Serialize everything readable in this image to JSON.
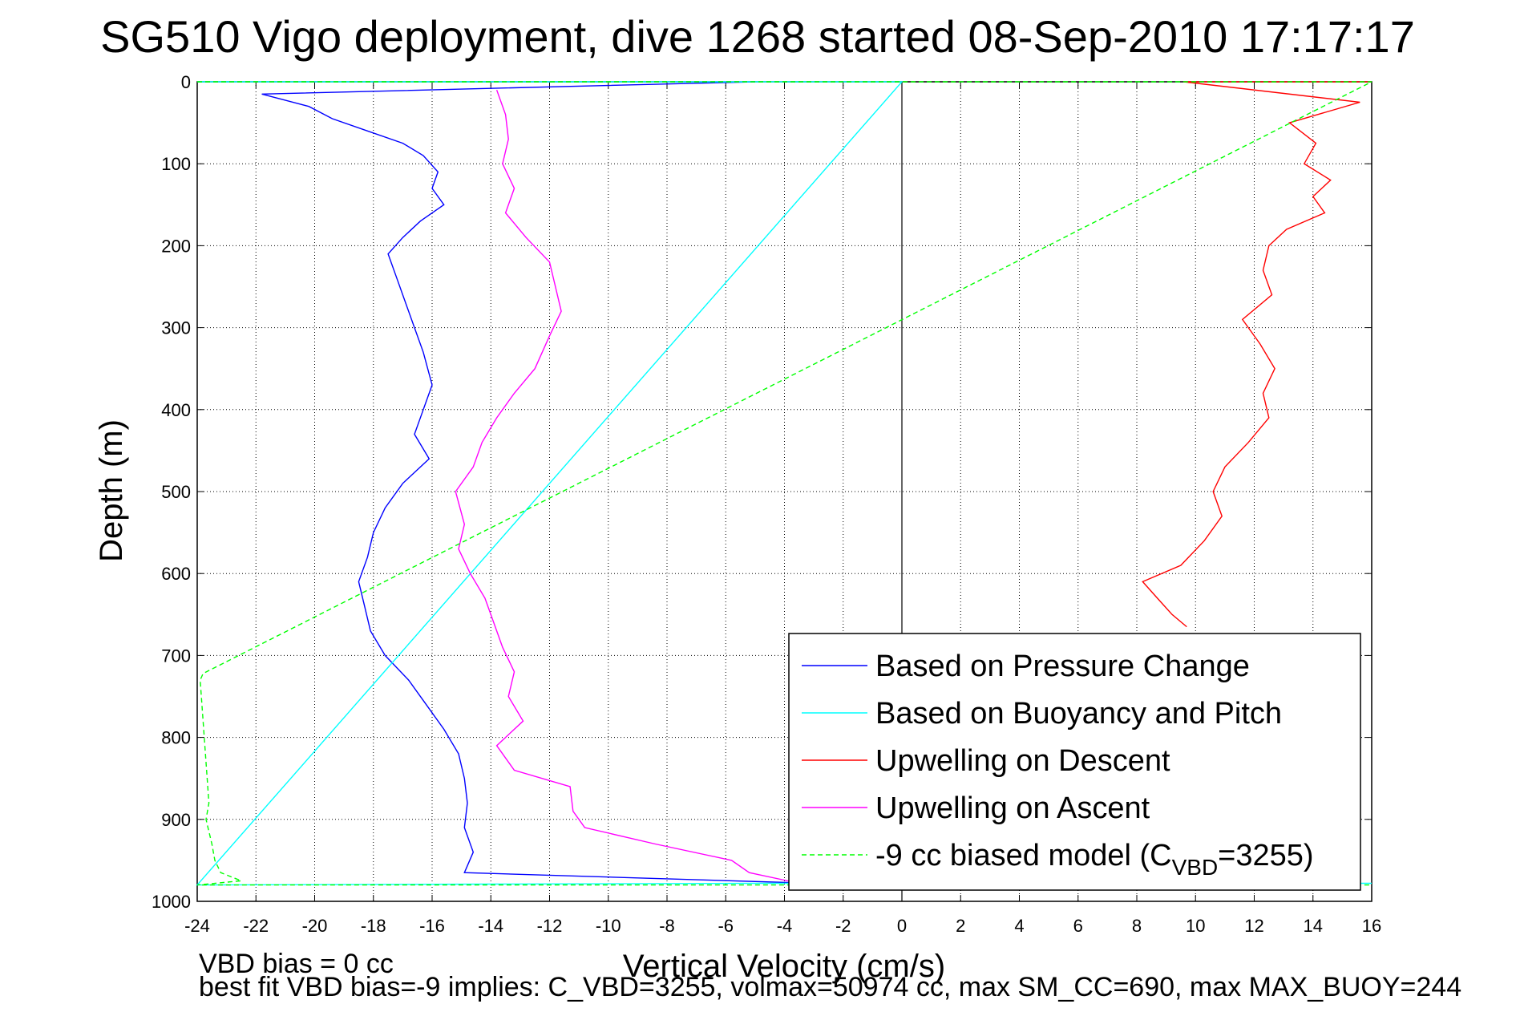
{
  "chart_data": {
    "type": "line",
    "title": "SG510 Vigo deployment, dive 1268 started 08-Sep-2010 17:17:17",
    "xlabel": "Vertical Velocity (cm/s)",
    "ylabel": "Depth (m)",
    "xlim": [
      -24,
      16
    ],
    "ylim": [
      1000,
      0
    ],
    "y_reversed": true,
    "grid": true,
    "x_ticks": [
      "-24",
      "-22",
      "-20",
      "-18",
      "-16",
      "-14",
      "-12",
      "-10",
      "-8",
      "-6",
      "-4",
      "-2",
      "0",
      "2",
      "4",
      "6",
      "8",
      "10",
      "12",
      "14",
      "16"
    ],
    "y_ticks": [
      "0",
      "100",
      "200",
      "300",
      "400",
      "500",
      "600",
      "700",
      "800",
      "900",
      "1000"
    ],
    "legend_position": "bottom-right",
    "series": [
      {
        "name": "Based on Pressure Change",
        "color": "#0000ff",
        "style": "solid",
        "points": [
          [
            -5,
            0
          ],
          [
            -21.8,
            15
          ],
          [
            -20.2,
            30
          ],
          [
            -19.4,
            45
          ],
          [
            -18.2,
            60
          ],
          [
            -17,
            75
          ],
          [
            -16.3,
            90
          ],
          [
            -15.8,
            110
          ],
          [
            -16,
            130
          ],
          [
            -15.6,
            150
          ],
          [
            -16.4,
            170
          ],
          [
            -17,
            190
          ],
          [
            -17.5,
            210
          ],
          [
            -17.2,
            240
          ],
          [
            -16.9,
            270
          ],
          [
            -16.6,
            300
          ],
          [
            -16.3,
            330
          ],
          [
            -16,
            370
          ],
          [
            -16.3,
            400
          ],
          [
            -16.6,
            430
          ],
          [
            -16.1,
            460
          ],
          [
            -17,
            490
          ],
          [
            -17.6,
            520
          ],
          [
            -18,
            550
          ],
          [
            -18.2,
            580
          ],
          [
            -18.5,
            610
          ],
          [
            -18.3,
            640
          ],
          [
            -18.1,
            670
          ],
          [
            -17.6,
            700
          ],
          [
            -16.8,
            730
          ],
          [
            -16.2,
            760
          ],
          [
            -15.6,
            790
          ],
          [
            -15.1,
            820
          ],
          [
            -14.9,
            850
          ],
          [
            -14.8,
            880
          ],
          [
            -14.9,
            910
          ],
          [
            -14.6,
            940
          ],
          [
            -14.9,
            965
          ],
          [
            -3,
            978
          ],
          [
            -2,
            982
          ]
        ]
      },
      {
        "name": "Based on Buoyancy and Pitch",
        "color": "#00ffff",
        "style": "solid",
        "points": [
          [
            -24,
            0
          ],
          [
            -14,
            0
          ],
          [
            -5,
            0
          ],
          [
            0,
            0
          ],
          [
            -24,
            980
          ],
          [
            -14,
            979
          ],
          [
            -5,
            978
          ],
          [
            0,
            978
          ],
          [
            16,
            978
          ]
        ]
      },
      {
        "name": "Upwelling on Descent",
        "color": "#ff0000",
        "style": "solid",
        "points": [
          [
            16,
            0
          ],
          [
            9.6,
            0
          ],
          [
            15.6,
            25
          ],
          [
            13.2,
            50
          ],
          [
            14.1,
            75
          ],
          [
            13.7,
            100
          ],
          [
            14.6,
            120
          ],
          [
            14,
            140
          ],
          [
            14.4,
            160
          ],
          [
            13.1,
            180
          ],
          [
            12.5,
            200
          ],
          [
            12.3,
            230
          ],
          [
            12.6,
            260
          ],
          [
            11.6,
            290
          ],
          [
            12.2,
            320
          ],
          [
            12.7,
            350
          ],
          [
            12.3,
            380
          ],
          [
            12.5,
            410
          ],
          [
            11.8,
            440
          ],
          [
            11,
            470
          ],
          [
            10.6,
            500
          ],
          [
            10.9,
            530
          ],
          [
            10.3,
            560
          ],
          [
            9.5,
            590
          ],
          [
            8.2,
            610
          ],
          [
            8.7,
            630
          ],
          [
            9.2,
            650
          ],
          [
            9.7,
            665
          ]
        ]
      },
      {
        "name": "Upwelling on Ascent",
        "color": "#ff00ff",
        "style": "solid",
        "points": [
          [
            -13.8,
            10
          ],
          [
            -13.5,
            40
          ],
          [
            -13.4,
            70
          ],
          [
            -13.6,
            100
          ],
          [
            -13.2,
            130
          ],
          [
            -13.5,
            160
          ],
          [
            -12.8,
            190
          ],
          [
            -12,
            220
          ],
          [
            -11.8,
            250
          ],
          [
            -11.6,
            280
          ],
          [
            -12,
            310
          ],
          [
            -12.5,
            350
          ],
          [
            -13.2,
            380
          ],
          [
            -13.8,
            410
          ],
          [
            -14.3,
            440
          ],
          [
            -14.6,
            470
          ],
          [
            -15.2,
            500
          ],
          [
            -14.9,
            540
          ],
          [
            -15.1,
            570
          ],
          [
            -14.7,
            600
          ],
          [
            -14.2,
            630
          ],
          [
            -13.9,
            660
          ],
          [
            -13.6,
            690
          ],
          [
            -13.2,
            720
          ],
          [
            -13.4,
            750
          ],
          [
            -12.9,
            780
          ],
          [
            -13.8,
            810
          ],
          [
            -13.2,
            840
          ],
          [
            -11.3,
            860
          ],
          [
            -11.2,
            890
          ],
          [
            -10.8,
            910
          ],
          [
            -8.4,
            930
          ],
          [
            -5.8,
            950
          ],
          [
            -5.2,
            965
          ],
          [
            -3.5,
            978
          ]
        ]
      },
      {
        "name": "-9 cc biased model (CVBD=3255)",
        "label_parts": {
          "prefix": "-9 cc biased model (C",
          "subscript": "VBD",
          "suffix": "=3255)"
        },
        "color": "#00ff00",
        "style": "dashed",
        "points": [
          [
            -24,
            0
          ],
          [
            16,
            0
          ],
          [
            -23.8,
            722
          ],
          [
            -23.9,
            730
          ],
          [
            -23.6,
            880
          ],
          [
            -23.7,
            900
          ],
          [
            -23.5,
            930
          ],
          [
            -23.4,
            950
          ],
          [
            -23.2,
            965
          ],
          [
            -22.5,
            975
          ],
          [
            -24,
            980
          ],
          [
            16,
            980
          ]
        ]
      }
    ]
  },
  "footer": {
    "line1": "VBD bias = 0 cc",
    "line2": "best fit VBD bias=-9 implies: C_VBD=3255, volmax=50974 cc, max SM_CC=690, max MAX_BUOY=244"
  }
}
